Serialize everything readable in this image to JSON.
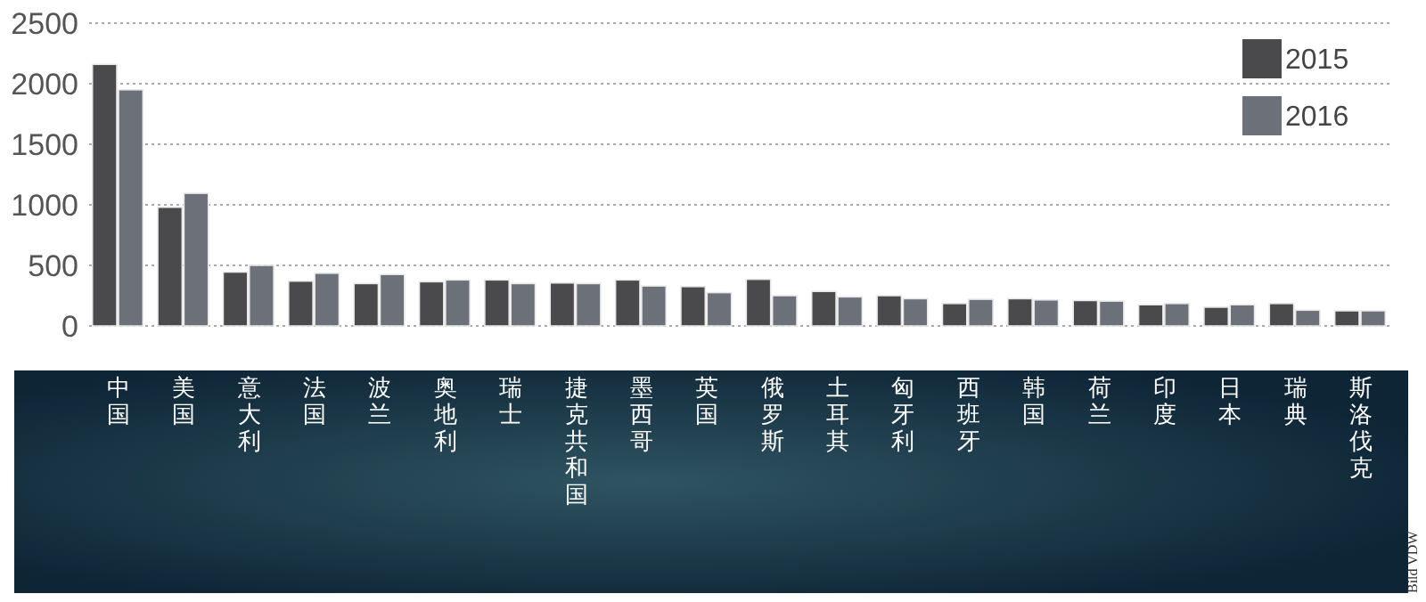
{
  "chart_data": {
    "type": "bar",
    "categories": [
      "中国",
      "美国",
      "意大利",
      "法国",
      "波兰",
      "奥地利",
      "瑞士",
      "捷克共和国",
      "墨西哥",
      "英国",
      "俄罗斯",
      "土耳其",
      "匈牙利",
      "西班牙",
      "韩国",
      "荷兰",
      "印度",
      "日本",
      "瑞典",
      "斯洛伐克"
    ],
    "series": [
      {
        "name": "2015",
        "color": "#4a4a4c",
        "values": [
          2160,
          980,
          445,
          370,
          350,
          365,
          380,
          355,
          380,
          325,
          385,
          285,
          250,
          185,
          225,
          210,
          175,
          155,
          185,
          125
        ]
      },
      {
        "name": "2016",
        "color": "#6b7079",
        "values": [
          1950,
          1095,
          500,
          435,
          425,
          380,
          350,
          350,
          330,
          275,
          250,
          240,
          225,
          220,
          215,
          205,
          185,
          175,
          130,
          125
        ]
      }
    ],
    "ylim": [
      0,
      2500
    ],
    "yticks": [
      0,
      500,
      1000,
      1500,
      2000,
      2500
    ],
    "grid": "y",
    "legend": "top right",
    "annotations": [
      "Bild VDW"
    ]
  }
}
